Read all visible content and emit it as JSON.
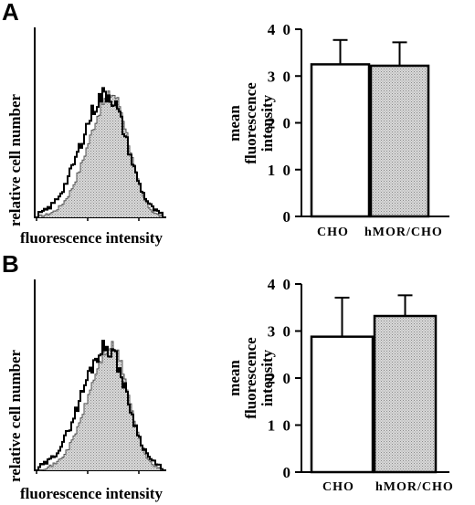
{
  "panels": [
    {
      "letter": "A",
      "histogram": {
        "ylabel": "relative cell number",
        "xlabel": "fluorescence intensity"
      },
      "chart_data": {
        "type": "bar",
        "categories": [
          "CHO",
          "hMOR/CHO"
        ],
        "values": [
          32.5,
          32.2
        ],
        "errors": [
          5.2,
          5.0
        ],
        "ylabel": "mean fluorescence intensity",
        "ylim": [
          0,
          40
        ],
        "yticks": [
          "0",
          "10",
          "20",
          "30",
          "40"
        ],
        "colors": [
          "#ffffff",
          "#c8c8c8"
        ]
      }
    },
    {
      "letter": "B",
      "histogram": {
        "ylabel": "relative cell number",
        "xlabel": "fluorescence intensity"
      },
      "chart_data": {
        "type": "bar",
        "categories": [
          "CHO",
          "hMOR/CHO"
        ],
        "values": [
          28.8,
          33.2
        ],
        "errors": [
          8.3,
          4.4
        ],
        "ylabel": "mean fluorescence intensity",
        "ylim": [
          0,
          40
        ],
        "yticks": [
          "0",
          "10",
          "20",
          "30",
          "40"
        ],
        "colors": [
          "#ffffff",
          "#c8c8c8"
        ]
      }
    }
  ]
}
